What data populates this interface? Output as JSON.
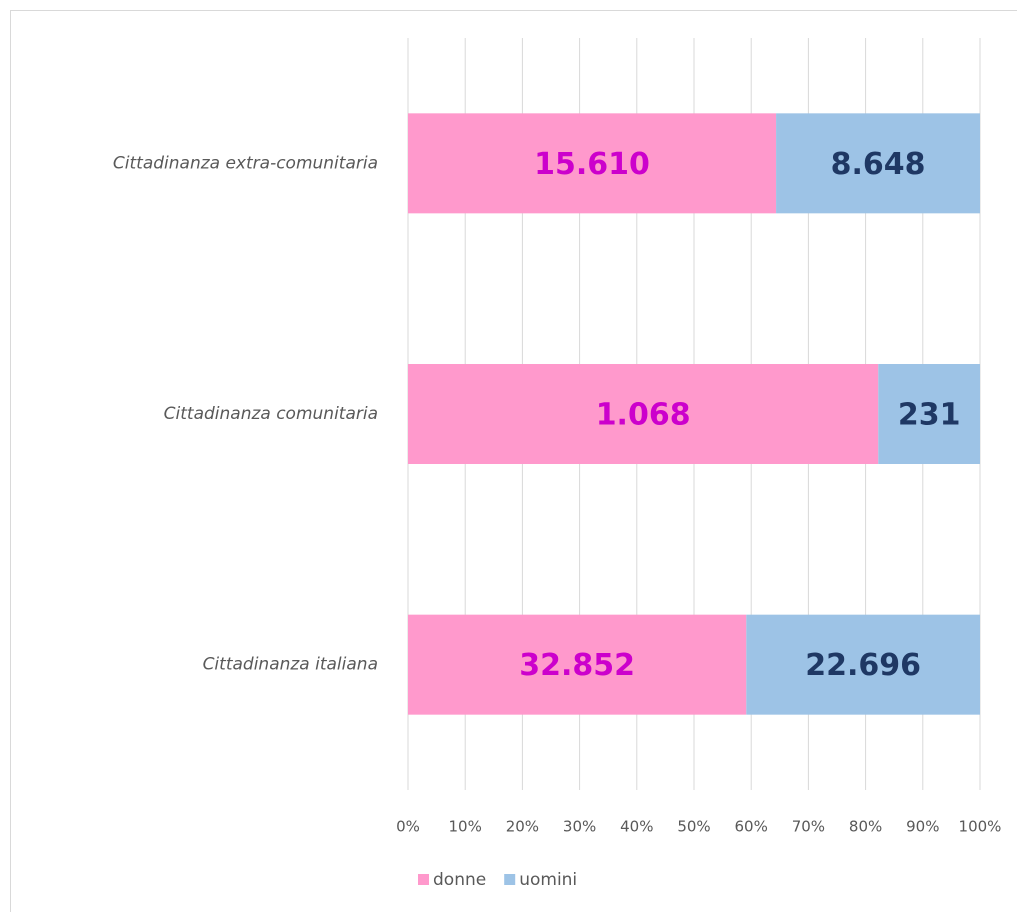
{
  "chart_data": {
    "type": "bar",
    "orientation": "horizontal",
    "stacking": "percent",
    "categories": [
      "Cittadinanza extra-comunitaria",
      "Cittadinanza comunitaria",
      "Cittadinanza italiana"
    ],
    "series": [
      {
        "name": "donne",
        "color": "#ff99cc",
        "label_color": "#cc00cc",
        "values": [
          15610,
          1068,
          32852
        ],
        "value_labels": [
          "15.610",
          "1.068",
          "32.852"
        ]
      },
      {
        "name": "uomini",
        "color": "#9dc3e6",
        "label_color": "#1f3864",
        "values": [
          8648,
          231,
          22696
        ],
        "value_labels": [
          "8.648",
          "231",
          "22.696"
        ]
      }
    ],
    "xlim": [
      0,
      100
    ],
    "xticks": [
      {
        "value": 0,
        "label": "0%"
      },
      {
        "value": 10,
        "label": "10%"
      },
      {
        "value": 20,
        "label": "20%"
      },
      {
        "value": 30,
        "label": "30%"
      },
      {
        "value": 40,
        "label": "40%"
      },
      {
        "value": 50,
        "label": "50%"
      },
      {
        "value": 60,
        "label": "60%"
      },
      {
        "value": 70,
        "label": "70%"
      },
      {
        "value": 80,
        "label": "80%"
      },
      {
        "value": 90,
        "label": "90%"
      },
      {
        "value": 100,
        "label": "100%"
      }
    ],
    "grid": true,
    "legend": "bottom"
  }
}
